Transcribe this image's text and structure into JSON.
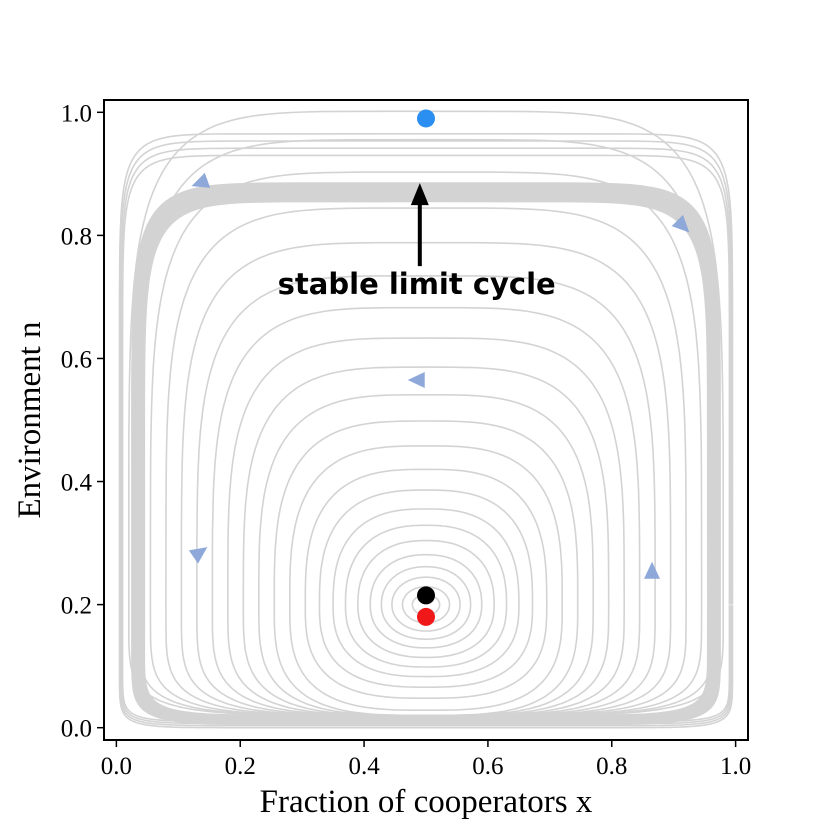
{
  "chart_data": {
    "type": "line",
    "title": "",
    "xlabel": "Fraction of cooperators x",
    "ylabel": "Environment n",
    "xlim": [
      -0.02,
      1.02
    ],
    "ylim": [
      -0.02,
      1.02
    ],
    "xticks": [
      "0.0",
      "0.2",
      "0.4",
      "0.6",
      "0.8",
      "1.0"
    ],
    "yticks": [
      "0.0",
      "0.2",
      "0.4",
      "0.6",
      "0.8",
      "1.0"
    ],
    "grid": false,
    "legend": "none",
    "center": {
      "x": 0.5,
      "y": 0.2
    },
    "inner_orbit_amplitudes": [
      0.022,
      0.038,
      0.055,
      0.072,
      0.09,
      0.11,
      0.13,
      0.15,
      0.172,
      0.195,
      0.22,
      0.245,
      0.27,
      0.295,
      0.32,
      0.345,
      0.37,
      0.395,
      0.42,
      0.445,
      0.465,
      0.48
    ],
    "limit_cycle_band": {
      "x_half_width": [
        0.455,
        0.475
      ],
      "y_bottom": [
        0.005,
        0.02
      ],
      "y_top": [
        0.855,
        0.885
      ]
    },
    "outer_orbit": {
      "x_half_width": [
        0.49,
        0.495
      ],
      "y_bottom": [
        0.0,
        0.01
      ],
      "y_top": [
        0.93,
        0.965
      ]
    },
    "points": [
      {
        "name": "stable limit cycle top",
        "x": 0.5,
        "y": 0.99,
        "color": "#2a8ff0"
      },
      {
        "name": "interior fixed point",
        "x": 0.5,
        "y": 0.215,
        "color": "#000000"
      },
      {
        "name": "red point",
        "x": 0.5,
        "y": 0.18,
        "color": "#f01818"
      }
    ],
    "flow_arrows": [
      {
        "x": 0.135,
        "y": 0.885,
        "dir": 200
      },
      {
        "x": 0.915,
        "y": 0.815,
        "dir": -45
      },
      {
        "x": 0.485,
        "y": 0.565,
        "dir": 180
      },
      {
        "x": 0.135,
        "y": 0.285,
        "dir": 35
      },
      {
        "x": 0.865,
        "y": 0.255,
        "dir": 90
      }
    ],
    "annotation": {
      "text": "stable limit cycle",
      "text_x": 0.485,
      "text_y": 0.705,
      "arrow_from": [
        0.49,
        0.75
      ],
      "arrow_to": [
        0.49,
        0.885
      ]
    },
    "colors": {
      "orbit": "#d3d3d3",
      "arrow": "#8ea9d9",
      "axes": "#000000"
    }
  }
}
